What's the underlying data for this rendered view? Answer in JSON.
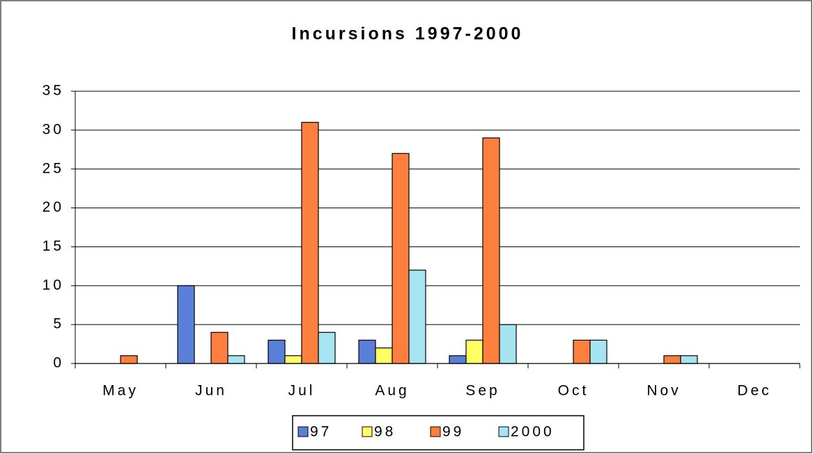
{
  "chart_data": {
    "type": "bar",
    "title": "Incursions 1997-2000",
    "categories": [
      "May",
      "Jun",
      "Jul",
      "Aug",
      "Sep",
      "Oct",
      "Nov",
      "Dec"
    ],
    "series": [
      {
        "name": "97",
        "color": "#5a7fd8",
        "values": [
          0,
          10,
          3,
          3,
          1,
          0,
          0,
          0
        ]
      },
      {
        "name": "98",
        "color": "#ffff66",
        "values": [
          0,
          0,
          1,
          2,
          3,
          0,
          0,
          0
        ]
      },
      {
        "name": "99",
        "color": "#ff7f3f",
        "values": [
          1,
          4,
          31,
          27,
          29,
          3,
          1,
          0
        ]
      },
      {
        "name": "2000",
        "color": "#a6e4f2",
        "values": [
          0,
          1,
          4,
          12,
          5,
          3,
          1,
          0
        ]
      }
    ],
    "ylim": [
      0,
      35
    ],
    "yticks": [
      0,
      5,
      10,
      15,
      20,
      25,
      30,
      35
    ],
    "grid": true,
    "legend": "bottom"
  }
}
